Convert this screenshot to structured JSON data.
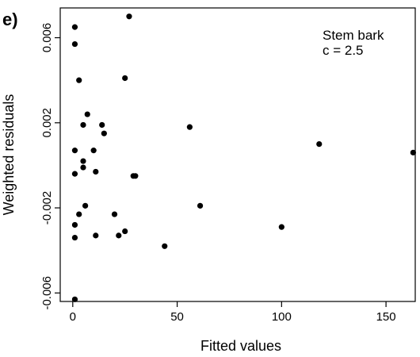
{
  "panel_label": "e)",
  "chart_data": {
    "type": "scatter",
    "title": "",
    "xlabel": "Fitted values",
    "ylabel": "Weighted residuals",
    "xlim": [
      -6,
      164
    ],
    "ylim": [
      -0.0064,
      0.0074
    ],
    "x_ticks": [
      0,
      50,
      100,
      150
    ],
    "x_tick_labels": [
      "0",
      "50",
      "100",
      "150"
    ],
    "y_ticks": [
      -0.006,
      -0.002,
      0.002,
      0.006
    ],
    "y_tick_labels": [
      "-0.006",
      "-0.002",
      "0.002",
      "0.006"
    ],
    "grid": false,
    "legend": "none",
    "annotations": [
      "Stem bark",
      "c = 2.5"
    ],
    "annotation_placement": "top-right",
    "points": [
      {
        "x": 1,
        "y": 0.0065
      },
      {
        "x": 1,
        "y": 0.0057
      },
      {
        "x": 27,
        "y": 0.007
      },
      {
        "x": 3,
        "y": 0.004
      },
      {
        "x": 25,
        "y": 0.0041
      },
      {
        "x": 7,
        "y": 0.0024
      },
      {
        "x": 5,
        "y": 0.0019
      },
      {
        "x": 14,
        "y": 0.0019
      },
      {
        "x": 15,
        "y": 0.0015
      },
      {
        "x": 56,
        "y": 0.0018
      },
      {
        "x": 118,
        "y": 0.001
      },
      {
        "x": 163,
        "y": 0.0006
      },
      {
        "x": 1,
        "y": 0.0007
      },
      {
        "x": 10,
        "y": 0.0007
      },
      {
        "x": 5,
        "y": 0.0002
      },
      {
        "x": 5,
        "y": -0.0001
      },
      {
        "x": 11,
        "y": -0.0003
      },
      {
        "x": 1,
        "y": -0.0004
      },
      {
        "x": 29,
        "y": -0.0005
      },
      {
        "x": 30,
        "y": -0.0005
      },
      {
        "x": 6,
        "y": -0.0019
      },
      {
        "x": 61,
        "y": -0.0019
      },
      {
        "x": 3,
        "y": -0.0023
      },
      {
        "x": 20,
        "y": -0.0023
      },
      {
        "x": 1,
        "y": -0.0028
      },
      {
        "x": 100,
        "y": -0.0029
      },
      {
        "x": 25,
        "y": -0.0031
      },
      {
        "x": 22,
        "y": -0.0033
      },
      {
        "x": 11,
        "y": -0.0033
      },
      {
        "x": 1,
        "y": -0.0034
      },
      {
        "x": 44,
        "y": -0.0038
      },
      {
        "x": 1,
        "y": -0.0063
      }
    ]
  }
}
